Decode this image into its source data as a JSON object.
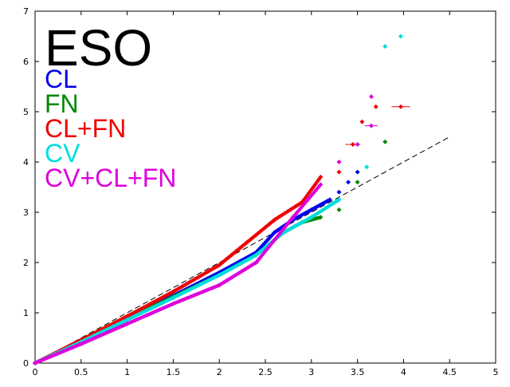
{
  "chart_data": {
    "type": "scatter",
    "title": "ESO",
    "xlabel": "",
    "ylabel": "",
    "xlim": [
      0,
      5
    ],
    "ylim": [
      0,
      7
    ],
    "x_ticks": [
      "0",
      "0.5",
      "1",
      "1.5",
      "2",
      "2.5",
      "3",
      "3.5",
      "4",
      "4.5",
      "5"
    ],
    "y_ticks": [
      "0",
      "1",
      "2",
      "3",
      "4",
      "5",
      "6",
      "7"
    ],
    "grid": false,
    "legend_position": "top-left",
    "reference_line": {
      "style": "dashed",
      "color": "#000000",
      "x": [
        0,
        4.5
      ],
      "y": [
        0,
        4.5
      ]
    },
    "series": [
      {
        "name": "CL",
        "color": "#0000ee",
        "x": [
          0,
          0.5,
          1.0,
          1.5,
          2.0,
          2.4,
          2.6,
          2.8,
          3.0,
          3.2,
          3.3,
          3.4,
          3.5
        ],
        "y": [
          0,
          0.44,
          0.89,
          1.34,
          1.8,
          2.2,
          2.6,
          2.85,
          3.05,
          3.25,
          3.4,
          3.6,
          3.8
        ],
        "error_x": [
          0,
          0,
          0,
          0,
          0,
          0,
          0,
          0,
          0,
          0,
          0,
          0,
          0
        ]
      },
      {
        "name": "FN",
        "color": "#008800",
        "x": [
          0,
          0.5,
          1.0,
          1.5,
          2.0,
          2.4,
          2.7,
          2.9,
          3.1,
          3.3,
          3.5,
          3.8
        ],
        "y": [
          0,
          0.44,
          0.88,
          1.32,
          1.75,
          2.15,
          2.6,
          2.8,
          2.9,
          3.05,
          3.6,
          4.4
        ],
        "error_x": [
          0,
          0,
          0,
          0,
          0,
          0,
          0,
          0,
          0,
          0,
          0,
          0
        ]
      },
      {
        "name": "CL+FN",
        "color": "#ee0000",
        "x": [
          0,
          0.5,
          1.0,
          1.5,
          2.0,
          2.3,
          2.6,
          2.9,
          3.1,
          3.3,
          3.45,
          3.55,
          3.7,
          3.97
        ],
        "y": [
          0,
          0.46,
          0.93,
          1.42,
          1.95,
          2.4,
          2.85,
          3.2,
          3.7,
          3.8,
          4.35,
          4.8,
          5.1,
          5.1
        ],
        "error_x": [
          0,
          0,
          0,
          0,
          0,
          0,
          0,
          0,
          0,
          0,
          0.08,
          0,
          0,
          0.1
        ]
      },
      {
        "name": "CV",
        "color": "#00dddd",
        "x": [
          0,
          0.5,
          1.0,
          1.5,
          2.0,
          2.4,
          2.7,
          3.0,
          3.3,
          3.6,
          3.8,
          3.97
        ],
        "y": [
          0,
          0.42,
          0.86,
          1.3,
          1.75,
          2.15,
          2.6,
          2.9,
          3.25,
          3.9,
          6.3,
          6.5
        ],
        "error_x": [
          0,
          0,
          0,
          0,
          0,
          0,
          0,
          0,
          0,
          0,
          0,
          0
        ]
      },
      {
        "name": "CV+CL+FN",
        "color": "#dd00dd",
        "x": [
          0,
          0.5,
          1.0,
          1.5,
          2.0,
          2.4,
          2.8,
          3.1,
          3.3,
          3.5,
          3.65,
          3.65
        ],
        "y": [
          0,
          0.38,
          0.78,
          1.18,
          1.55,
          2.0,
          2.9,
          3.55,
          4.0,
          4.35,
          4.72,
          5.3
        ],
        "error_x": [
          0,
          0,
          0,
          0,
          0,
          0,
          0,
          0,
          0,
          0,
          0.07,
          0
        ]
      }
    ]
  }
}
